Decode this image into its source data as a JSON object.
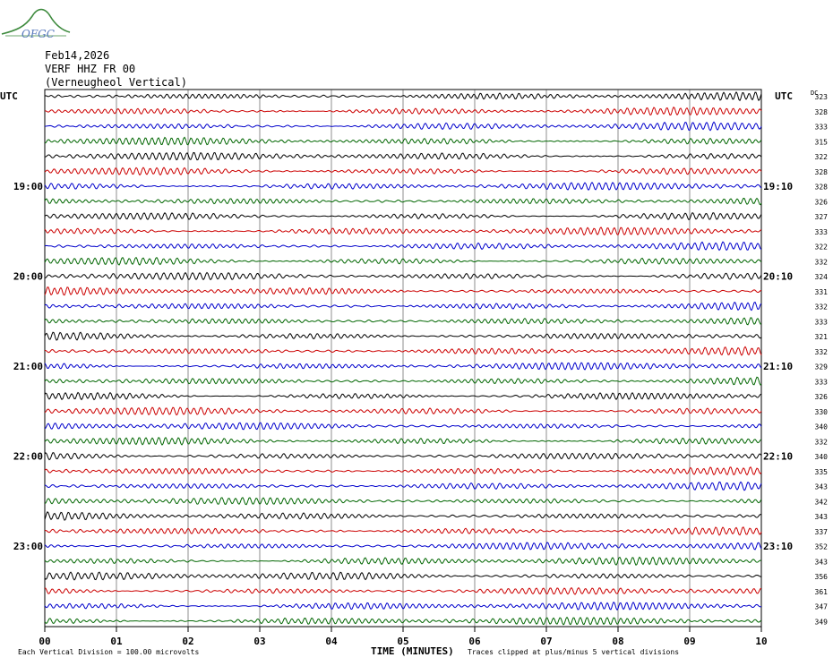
{
  "header": {
    "logo_text": "OFGC",
    "date": "Feb14,2026",
    "station": "VERF HHZ FR 00",
    "location": "(Verneugheol Vertical)"
  },
  "chart_data": {
    "type": "line",
    "title": "Feb14,2026",
    "xlabel": "TIME (MINUTES)",
    "xlim": [
      0,
      10
    ],
    "x_ticks": [
      "00",
      "01",
      "02",
      "03",
      "04",
      "05",
      "06",
      "07",
      "08",
      "09",
      "10"
    ],
    "left_axis_title": "UTC",
    "right_axis_title": "UTC",
    "dc_label": "DC",
    "left_hour_labels": [
      {
        "row": 6,
        "label": "19:00"
      },
      {
        "row": 12,
        "label": "20:00"
      },
      {
        "row": 18,
        "label": "21:00"
      },
      {
        "row": 24,
        "label": "22:00"
      },
      {
        "row": 30,
        "label": "23:00"
      }
    ],
    "right_time_labels": [
      {
        "row": 6,
        "label": "19:10"
      },
      {
        "row": 12,
        "label": "20:10"
      },
      {
        "row": 18,
        "label": "21:10"
      },
      {
        "row": 24,
        "label": "22:10"
      },
      {
        "row": 30,
        "label": "23:10"
      }
    ],
    "trace_colors": [
      "#000000",
      "#cc0000",
      "#0000cc",
      "#006600"
    ],
    "trace_count": 36,
    "dc_offsets": [
      323,
      328,
      333,
      315,
      322,
      328,
      328,
      326,
      327,
      333,
      322,
      332,
      324,
      331,
      332,
      333,
      321,
      332,
      329,
      333,
      326,
      330,
      340,
      332,
      340,
      335,
      343,
      342,
      343,
      337,
      352,
      343,
      356,
      361,
      347,
      349
    ],
    "footer_left": "Each Vertical Division =  100.00 microvolts",
    "footer_right": "Traces clipped at plus/minus 5 vertical divisions"
  }
}
